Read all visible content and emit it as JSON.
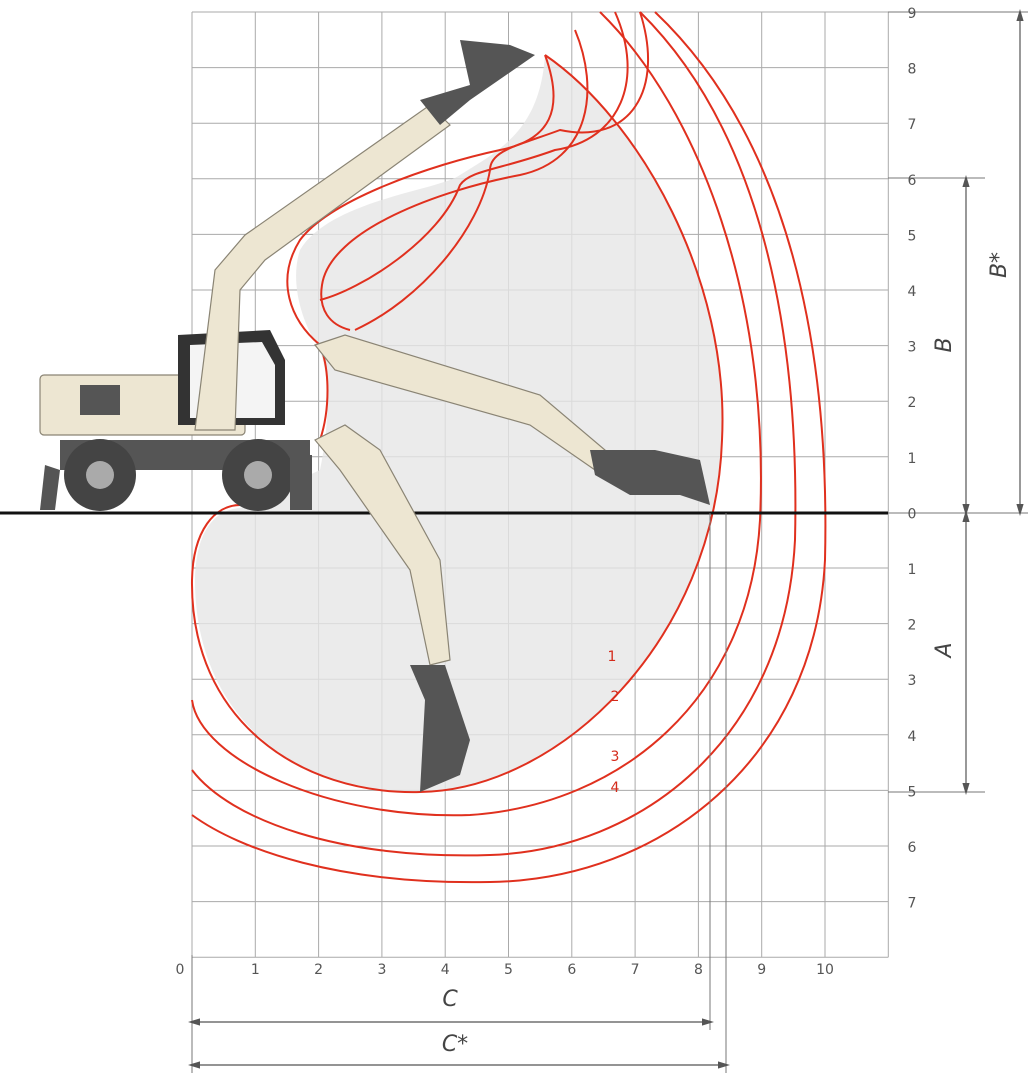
{
  "x_labels": [
    "0",
    "1",
    "2",
    "3",
    "4",
    "5",
    "6",
    "7",
    "8",
    "9",
    "10"
  ],
  "y_labels": [
    "9",
    "8",
    "7",
    "6",
    "5",
    "4",
    "3",
    "2",
    "1",
    "0",
    "1",
    "2",
    "3",
    "4",
    "5",
    "6",
    "7"
  ],
  "curve_labels": [
    "1",
    "2",
    "3",
    "4"
  ],
  "dimensions": {
    "C": "C",
    "C_star": "C*",
    "A": "A",
    "B": "B",
    "B_star": "B*"
  }
}
